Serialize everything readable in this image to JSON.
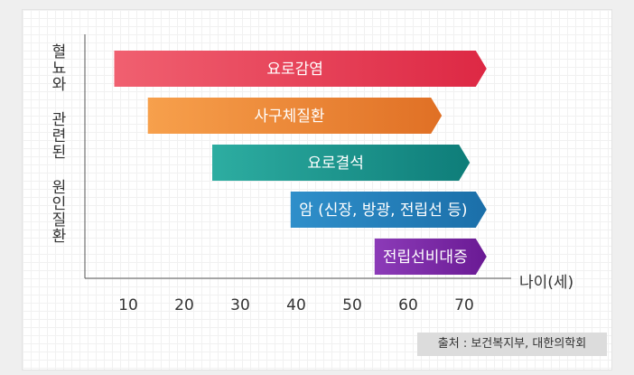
{
  "chart_data": {
    "type": "bar",
    "orientation": "horizontal-range",
    "title": "",
    "ylabel": "혈뇨와 관련된 원인질환",
    "xlabel": "나이(세)",
    "xticks": [
      10,
      20,
      30,
      40,
      50,
      60,
      70
    ],
    "xlim": [
      3,
      76
    ],
    "grid": false,
    "series": [
      {
        "name": "요로감염",
        "start": 7.5,
        "end": 74,
        "color_from": "#f06070",
        "color_to": "#dd2844"
      },
      {
        "name": "사구체질환",
        "start": 13.5,
        "end": 66,
        "color_from": "#f7a04c",
        "color_to": "#e07025"
      },
      {
        "name": "요로결석",
        "start": 25,
        "end": 71,
        "color_from": "#2dada1",
        "color_to": "#0e7d79"
      },
      {
        "name": "암 (신장, 방광, 전립선 등)",
        "start": 39,
        "end": 74,
        "color_from": "#2f8fca",
        "color_to": "#1b6fa9"
      },
      {
        "name": "전립선비대증",
        "start": 54,
        "end": 74,
        "color_from": "#8c3bb8",
        "color_to": "#6a1a94"
      }
    ]
  },
  "source": "출처 : 보건복지부, 대한의학회"
}
